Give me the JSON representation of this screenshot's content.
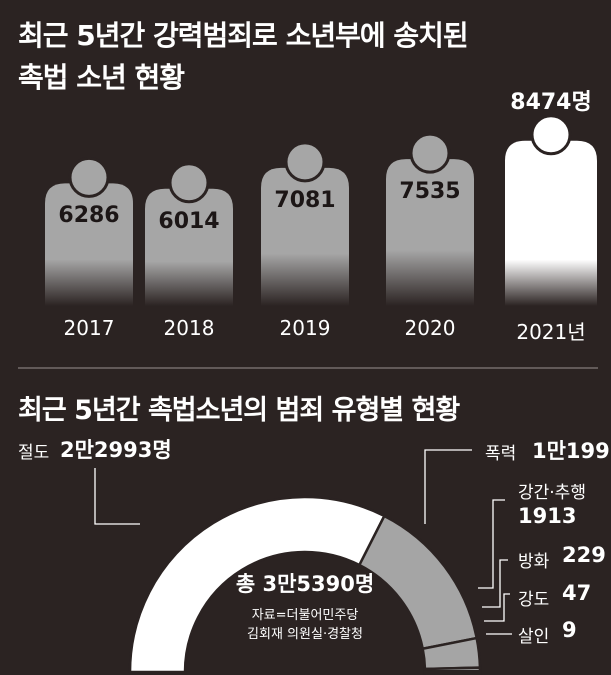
{
  "chart_data": [
    {
      "type": "bar",
      "title": "최근 5년간 강력범죄로 소년부에 송치된",
      "subtitle": "촉법 소년 현황",
      "categories": [
        "2017",
        "2018",
        "2019",
        "2020",
        "2021년"
      ],
      "values": [
        6286,
        6014,
        7081,
        7535,
        8474
      ],
      "value_labels": [
        "6286",
        "6014",
        "7081",
        "7535",
        "8474명"
      ],
      "colors": [
        "#a5a5a5",
        "#a5a5a5",
        "#a5a5a5",
        "#a5a5a5",
        "#ffffff"
      ]
    },
    {
      "type": "pie",
      "style": "half-donut",
      "title": "최근 5년간 촉법소년의 범죄 유형별 현황",
      "total_label": "총 3만5390명",
      "slices": [
        {
          "label": "절도",
          "value": 22993,
          "value_label": "2만2993명",
          "color": "#ffffff"
        },
        {
          "label": "폭력",
          "value": 10199,
          "value_label": "1만199",
          "color": "#a5a5a5"
        },
        {
          "label": "강간·추행",
          "value": 1913,
          "value_label": "1913",
          "color": "#a5a5a5"
        },
        {
          "label": "방화",
          "value": 229,
          "value_label": "229",
          "color": "#a5a5a5"
        },
        {
          "label": "강도",
          "value": 47,
          "value_label": "47",
          "color": "#a5a5a5"
        },
        {
          "label": "살인",
          "value": 9,
          "value_label": "9",
          "color": "#a5a5a5"
        }
      ]
    }
  ],
  "source": {
    "line1": "자료=더불어민주당",
    "line2": "김회재 의원실·경찰청"
  }
}
